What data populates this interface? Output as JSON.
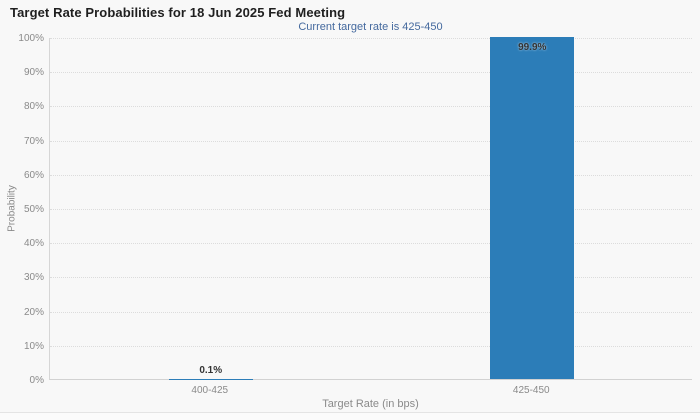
{
  "chart": {
    "title": "Target Rate Probabilities for 18 Jun 2025 Fed Meeting",
    "subtitle": "Current target rate is 425-450",
    "xlabel": "Target Rate (in bps)",
    "ylabel": "Probability"
  },
  "chart_data": {
    "type": "bar",
    "title": "Target Rate Probabilities for 18 Jun 2025 Fed Meeting",
    "subtitle": "Current target rate is 425-450",
    "xlabel": "Target Rate (in bps)",
    "ylabel": "Probability",
    "categories": [
      "400-425",
      "425-450"
    ],
    "values": [
      0.1,
      99.9
    ],
    "value_labels": [
      "0.1%",
      "99.9%"
    ],
    "ylim": [
      0,
      100
    ],
    "y_tick_step": 10,
    "y_tick_labels": [
      "0%",
      "10%",
      "20%",
      "30%",
      "40%",
      "50%",
      "60%",
      "70%",
      "80%",
      "90%",
      "100%"
    ],
    "grid": "horizontal-dotted",
    "legend": "none"
  },
  "colors": {
    "bar": "#2c7db8",
    "title_text": "#1f1f1f",
    "subtitle_text": "#44699e",
    "axis_text": "#8a8a8a",
    "grid_line": "#dcdcdc",
    "background": "#f8f8f8"
  }
}
